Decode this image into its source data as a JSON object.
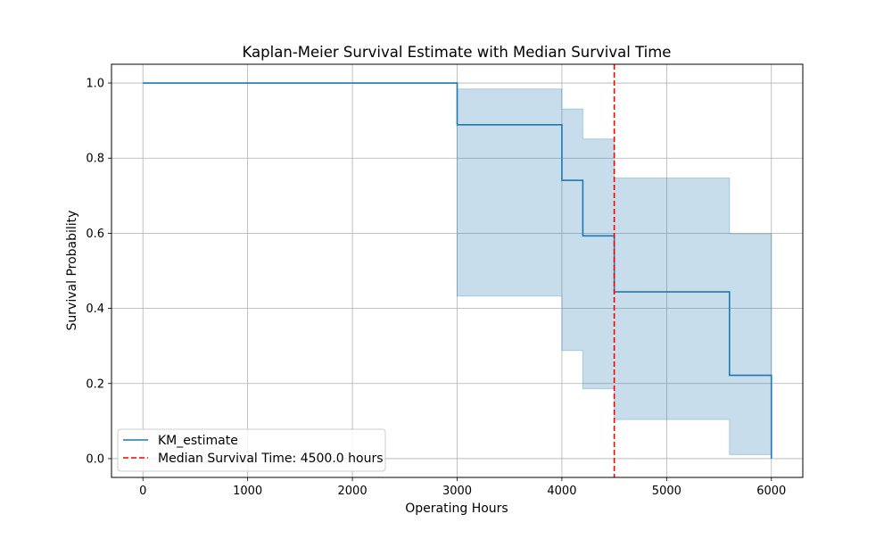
{
  "chart_data": {
    "type": "line",
    "title": "Kaplan-Meier Survival Estimate with Median Survival Time",
    "xlabel": "Operating Hours",
    "ylabel": "Survival Probability",
    "xlim": [
      -300,
      6300
    ],
    "ylim": [
      -0.05,
      1.05
    ],
    "xticks": [
      0,
      1000,
      2000,
      3000,
      4000,
      5000,
      6000
    ],
    "yticks": [
      0.0,
      0.2,
      0.4,
      0.6,
      0.8,
      1.0
    ],
    "xtick_labels": [
      "0",
      "1000",
      "2000",
      "3000",
      "4000",
      "5000",
      "6000"
    ],
    "ytick_labels": [
      "0.0",
      "0.2",
      "0.4",
      "0.6",
      "0.8",
      "1.0"
    ],
    "grid": true,
    "legend_position": "lower-left",
    "series": [
      {
        "name": "KM_estimate",
        "color": "#1f77b4",
        "step": "post",
        "x": [
          0,
          3000,
          4000,
          4200,
          4500,
          5600,
          6000
        ],
        "y": [
          1.0,
          0.889,
          0.741,
          0.593,
          0.444,
          0.222,
          0.0
        ]
      }
    ],
    "confidence_band": {
      "color": "#1f77b4",
      "opacity": 0.25,
      "x": [
        3000,
        4000,
        4200,
        4500,
        5600,
        6000
      ],
      "lower": [
        0.433,
        0.288,
        0.186,
        0.104,
        0.011,
        0.011
      ],
      "upper": [
        0.984,
        0.931,
        0.851,
        0.747,
        0.599,
        0.599
      ]
    },
    "median_line": {
      "name": "Median Survival Time: 4500.0 hours",
      "x": 4500,
      "color": "#ff0000",
      "style": "dashed"
    }
  }
}
